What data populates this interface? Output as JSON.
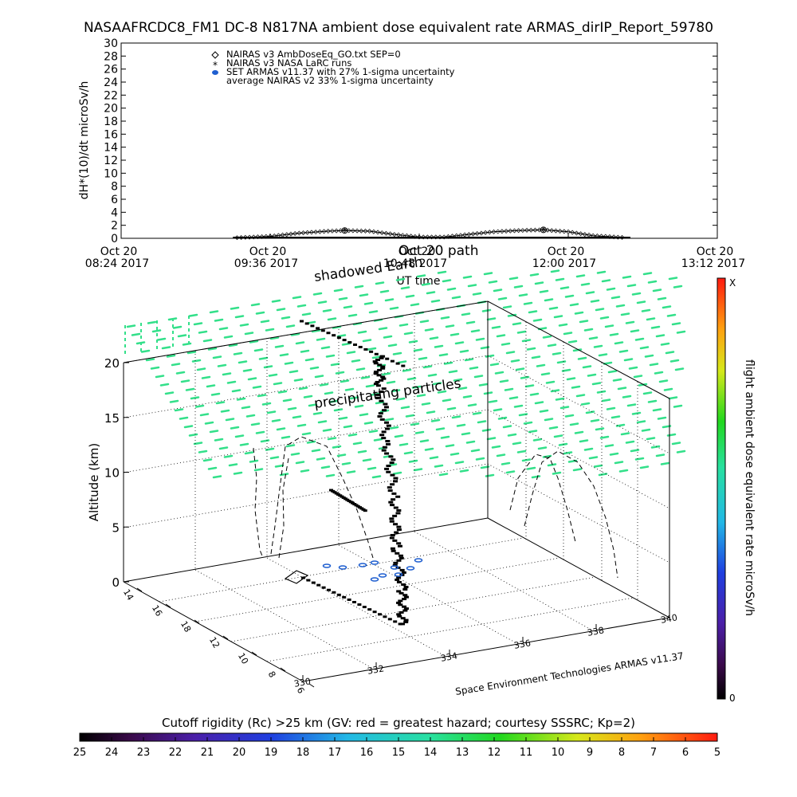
{
  "title": "NASAAFRCDC8_FM1 DC-8   N817NA ambient dose equivalent rate ARMAS_dirIP_Report_59780",
  "top_panel": {
    "ylabel": "dH*(10)/dt microSv/h",
    "y_ticks": [
      "0",
      "2",
      "4",
      "6",
      "8",
      "10",
      "12",
      "14",
      "16",
      "18",
      "20",
      "22",
      "24",
      "26",
      "28",
      "30"
    ],
    "x_ticks": [
      {
        "line1": "Oct 20",
        "line2": "08:24 2017"
      },
      {
        "line1": "Oct 20",
        "line2": "09:36 2017"
      },
      {
        "line1": "Oct 20",
        "line2": "10:48 2017"
      },
      {
        "line1": "Oct 20",
        "line2": "12:00 2017"
      },
      {
        "line1": "Oct 20",
        "line2": "13:12 2017"
      }
    ],
    "xlabel": "UT time",
    "legend": [
      {
        "symbol": "diamond",
        "text": "NAIRAS v3 AmbDoseEq_GO.txt SEP=0",
        "color": "#000000"
      },
      {
        "symbol": "star",
        "text": "NAIRAS v3 NASA LaRC runs",
        "color": "#000000"
      },
      {
        "symbol": "filled-ellipse",
        "text": "SET ARMAS v11.37 with 27% 1-sigma uncertainty",
        "color": "#1f5fd0"
      },
      {
        "symbol": "none",
        "text": "average NAIRAS v2 33% 1-sigma uncertainty",
        "color": "#000000"
      }
    ]
  },
  "chart_data": [
    {
      "type": "line",
      "title": "NASAAFRCDC8_FM1 DC-8   N817NA ambient dose equivalent rate ARMAS_dirIP_Report_59780",
      "xlabel": "UT time",
      "ylabel": "dH*(10)/dt microSv/h",
      "xlim": [
        "2017-10-20T08:24",
        "2017-10-20T13:12"
      ],
      "ylim": [
        0,
        30
      ],
      "grid": false,
      "legend_position": "top-left",
      "series": [
        {
          "name": "NAIRAS v3 AmbDoseEq_GO.txt SEP=0",
          "x": [
            "2017-10-20T09:20",
            "2017-10-20T09:36",
            "2017-10-20T09:50",
            "2017-10-20T10:04",
            "2017-10-20T10:12",
            "2017-10-20T10:24",
            "2017-10-20T10:36",
            "2017-10-20T10:48",
            "2017-10-20T11:00",
            "2017-10-20T11:12",
            "2017-10-20T11:24",
            "2017-10-20T11:36",
            "2017-10-20T11:48",
            "2017-10-20T12:00",
            "2017-10-20T12:12",
            "2017-10-20T12:28"
          ],
          "values": [
            0.1,
            0.3,
            0.8,
            1.1,
            1.2,
            1.1,
            0.6,
            0.2,
            0.2,
            0.6,
            1.0,
            1.2,
            1.3,
            1.0,
            0.4,
            0.1
          ]
        },
        {
          "name": "NAIRAS v3 NASA LaRC runs",
          "x": [
            "2017-10-20T10:12",
            "2017-10-20T11:48"
          ],
          "values": [
            1.2,
            1.3
          ]
        }
      ]
    },
    {
      "type": "scatter",
      "zlabel": "Altitude (km)",
      "z_ticks": [
        "0",
        "5",
        "10",
        "15",
        "20"
      ],
      "zlim": [
        0,
        22
      ],
      "lat_ticks": [
        "14",
        "16",
        "18",
        "12",
        "10",
        "8",
        "6"
      ],
      "lon_ticks": [
        "330",
        "332",
        "334",
        "336",
        "338",
        "340"
      ],
      "annotations": [
        "shadowed Earth",
        "Oct 20 path",
        "precipitating particles",
        "Space Environment Technologies ARMAS v11.37"
      ],
      "points": [
        {
          "lon": 334.5,
          "lat": 12.2,
          "alt": 0.2
        },
        {
          "lon": 334.5,
          "lat": 12.2,
          "alt": 3.0
        },
        {
          "lon": 334.4,
          "lat": 12.4,
          "alt": 6.5
        },
        {
          "lon": 334.4,
          "lat": 12.5,
          "alt": 10.5
        },
        {
          "lon": 334.3,
          "lat": 12.8,
          "alt": 15.0
        },
        {
          "lon": 334.2,
          "lat": 13.0,
          "alt": 19.5
        },
        {
          "lon": 334.2,
          "lat": 13.1,
          "alt": 22.0
        }
      ]
    }
  ],
  "panel3d": {
    "zlabel": "Altitude (km)",
    "z_ticks": [
      "0",
      "5",
      "10",
      "15",
      "20"
    ],
    "lat_ticks": [
      "14",
      "16",
      "18",
      "12",
      "10",
      "8",
      "6"
    ],
    "lon_ticks": [
      "330",
      "332",
      "334",
      "336",
      "338",
      "340"
    ],
    "overlay_title": "Oct 20 path",
    "shadowed_label": "shadowed Earth",
    "precip_label": "precipitating particles",
    "credit": "Space Environment Technologies ARMAS v11.37"
  },
  "colorbar_right": {
    "label": "flight ambient dose equivalent rate microSv/h",
    "top": "X",
    "bottom": "0"
  },
  "colorbar_bottom": {
    "label": "Cutoff rigidity (Rc) >25 km (GV: red = greatest hazard; courtesy SSSRC; Kp=2)",
    "ticks": [
      "25",
      "24",
      "23",
      "22",
      "21",
      "20",
      "19",
      "18",
      "17",
      "16",
      "15",
      "14",
      "13",
      "12",
      "11",
      "10",
      "9",
      "8",
      "7",
      "6",
      "5"
    ]
  },
  "colors": {
    "precip": "#33e08a",
    "armas": "#1f5fd0",
    "frame": "#000000"
  }
}
